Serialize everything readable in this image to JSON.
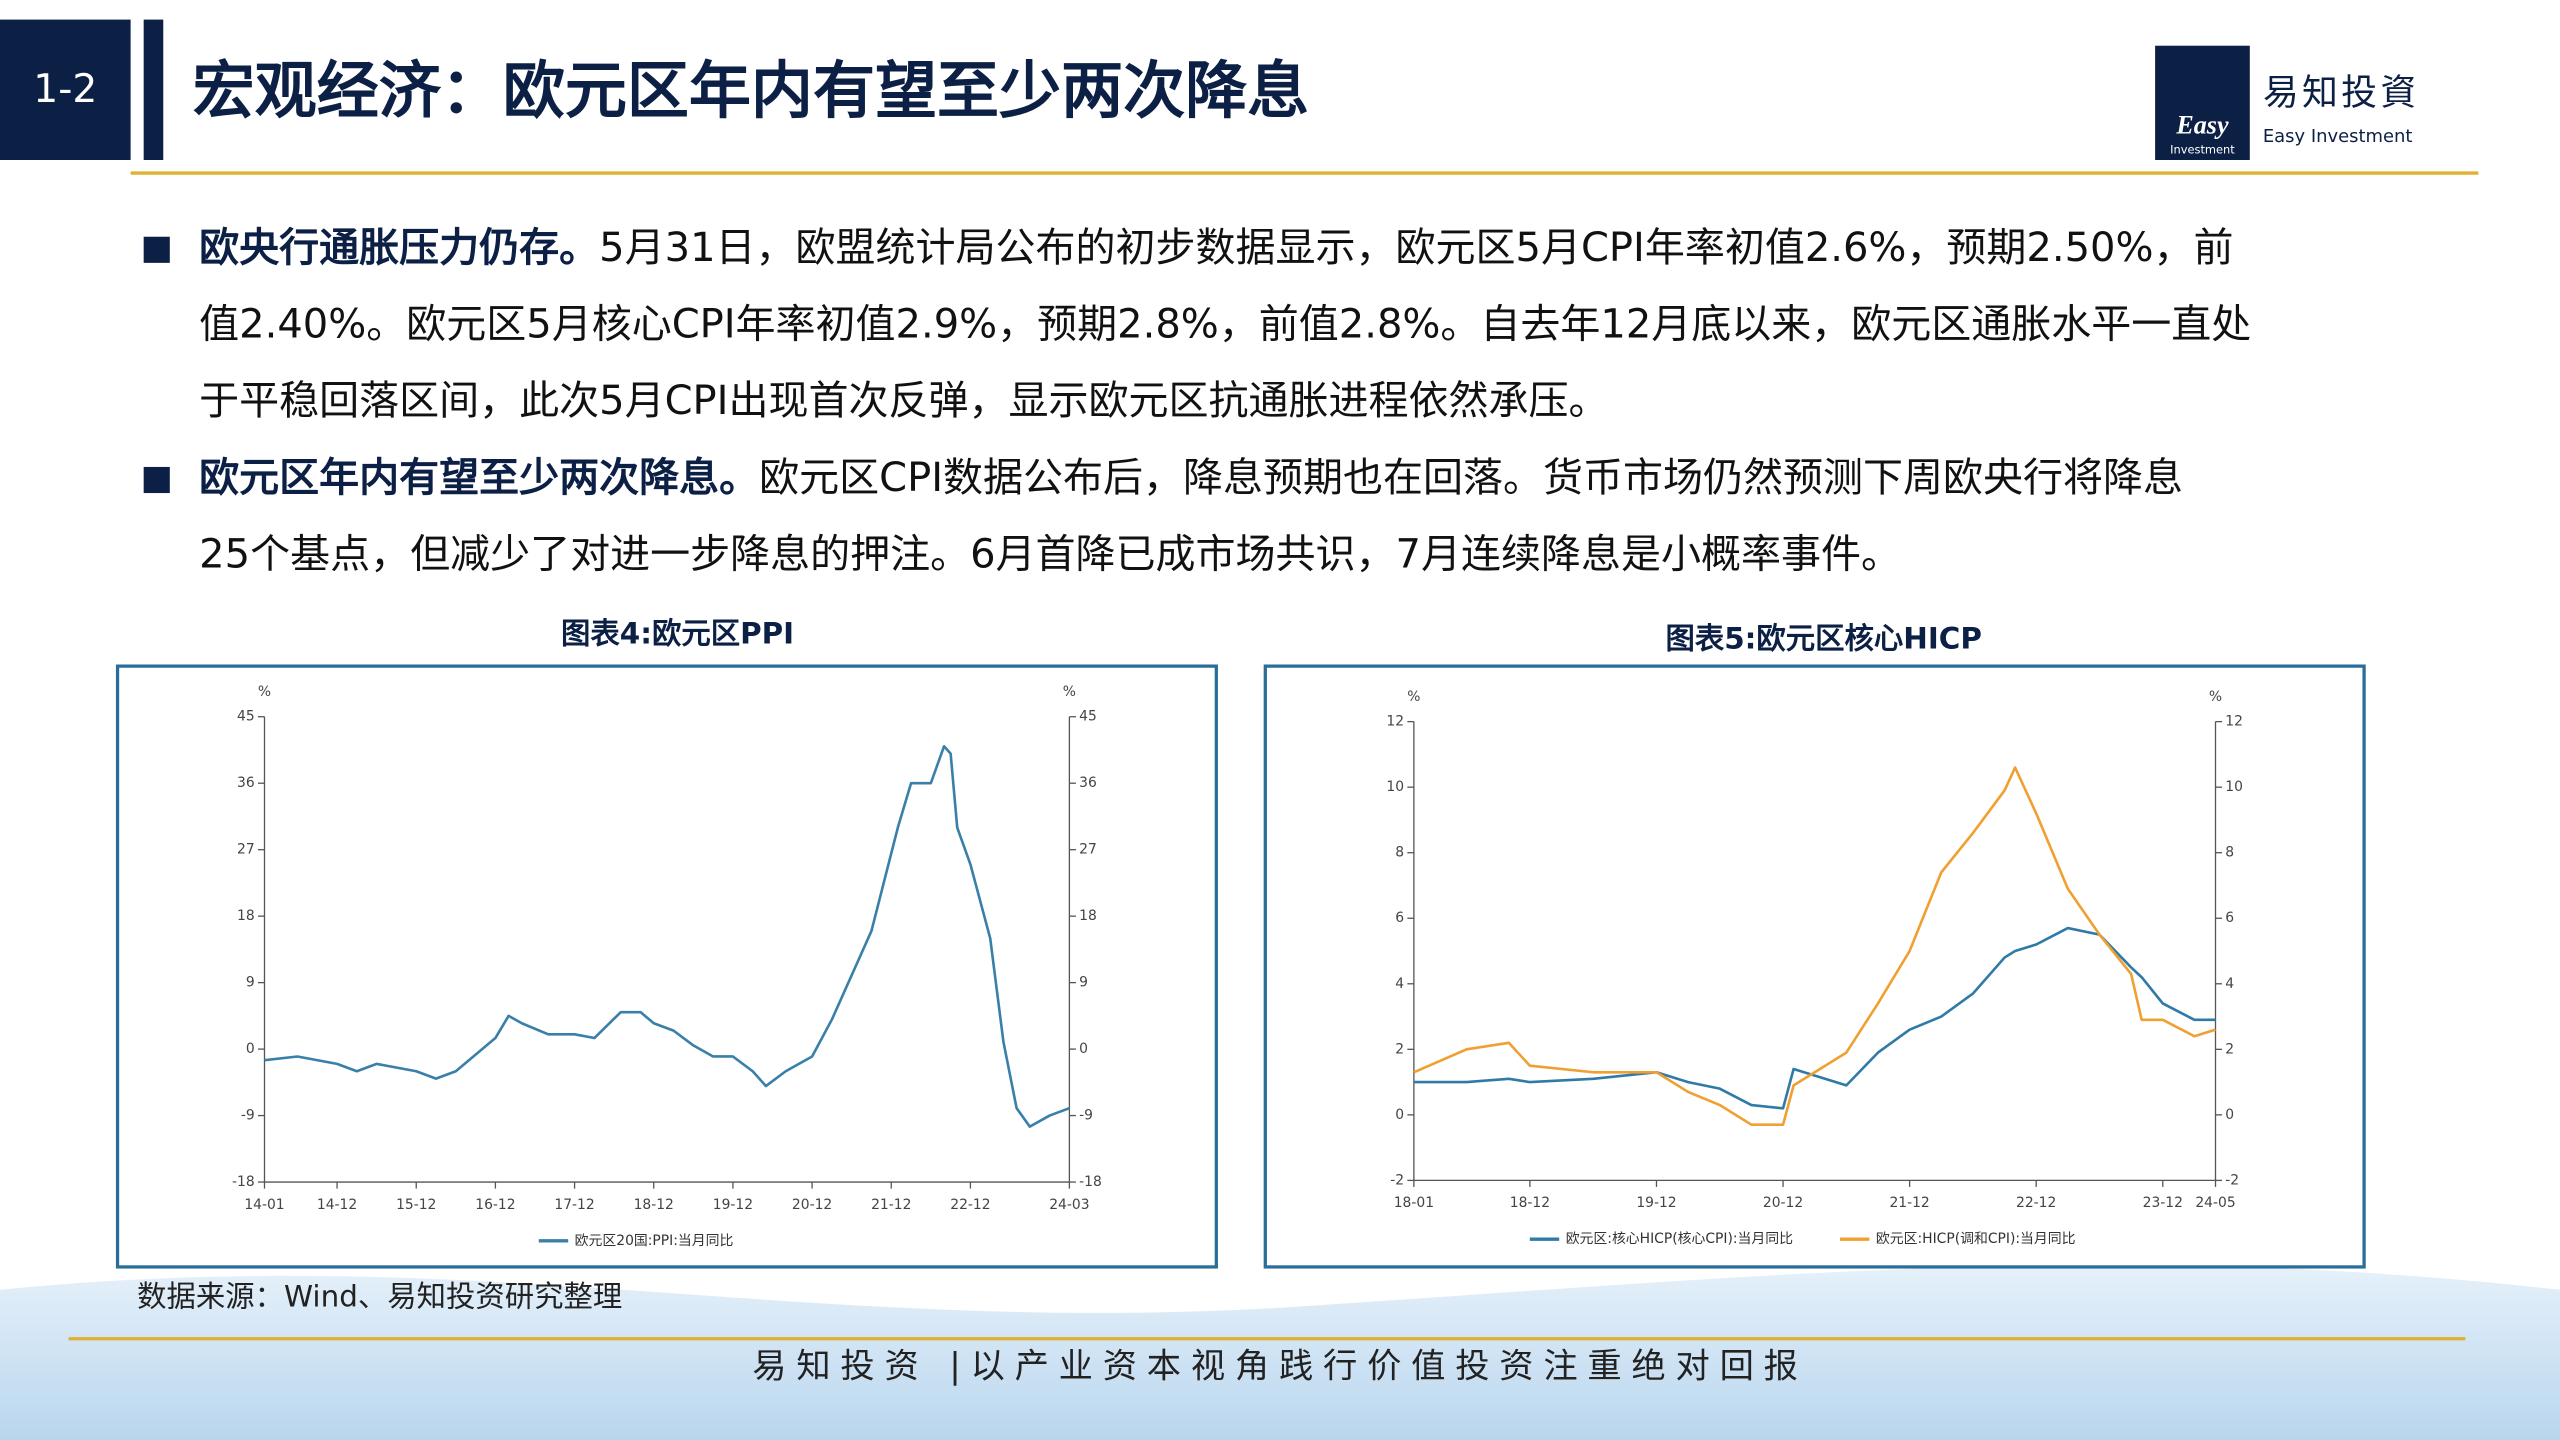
{
  "header": {
    "tag": "1-2",
    "title": "宏观经济：欧元区年内有望至少两次降息",
    "logo_mark": "Easy",
    "logo_mark_sub": "Investment",
    "logo_cn": "易知投資",
    "logo_en": "Easy Investment"
  },
  "bullets": [
    {
      "lead": "欧央行通胀压力仍存。",
      "lines": [
        "5月31日，欧盟统计局公布的初步数据显示，欧元区5月CPI年率初值2.6%，预期2.50%，前",
        "值2.40%。欧元区5月核心CPI年率初值2.9%，预期2.8%，前值2.8%。自去年12月底以来，欧元区通胀水平一直处",
        "于平稳回落区间，此次5月CPI出现首次反弹，显示欧元区抗通胀进程依然承压。"
      ]
    },
    {
      "lead": "欧元区年内有望至少两次降息。",
      "lines": [
        "欧元区CPI数据公布后，降息预期也在回落。货币市场仍然预测下周欧央行将降息",
        "25个基点，但减少了对进一步降息的押注。6月首降已成市场共识，7月连续降息是小概率事件。"
      ]
    }
  ],
  "source": "数据来源：Wind、易知投资研究整理",
  "footer": "易知投资 |以产业资本视角践行价值投资注重绝对回报",
  "chart_data": [
    {
      "type": "line",
      "title": "图表4:欧元区PPI",
      "ylabel": "%",
      "y2label": "%",
      "x": [
        "14-01",
        "14-06",
        "14-12",
        "15-03",
        "15-06",
        "15-12",
        "16-03",
        "16-06",
        "16-12",
        "17-02",
        "17-04",
        "17-08",
        "17-12",
        "18-03",
        "18-07",
        "18-10",
        "18-12",
        "19-03",
        "19-06",
        "19-09",
        "19-12",
        "20-03",
        "20-05",
        "20-08",
        "20-12",
        "21-03",
        "21-06",
        "21-09",
        "21-11",
        "22-01",
        "22-03",
        "22-06",
        "22-08",
        "22-09",
        "22-10",
        "22-12",
        "23-03",
        "23-05",
        "23-07",
        "23-09",
        "23-12",
        "24-03"
      ],
      "series": [
        {
          "name": "欧元区20国:PPI:当月同比",
          "color": "#3a7fa8",
          "values": [
            -1.5,
            -1,
            -2,
            -3,
            -2,
            -3,
            -4,
            -3,
            1.5,
            4.5,
            3.5,
            2,
            2,
            1.5,
            5,
            5,
            3.5,
            2.5,
            0.5,
            -1,
            -1,
            -3,
            -5,
            -3,
            -1,
            4,
            10,
            16,
            23,
            30,
            36,
            36,
            41,
            40,
            30,
            25,
            15,
            1,
            -8,
            -10.5,
            -9,
            -8
          ]
        }
      ],
      "xticks": [
        "14-01",
        "14-12",
        "15-12",
        "16-12",
        "17-12",
        "18-12",
        "19-12",
        "20-12",
        "21-12",
        "22-12",
        "24-03"
      ],
      "ylim": [
        -18,
        45
      ],
      "yticks": [
        -18,
        -9,
        0,
        9,
        18,
        27,
        36,
        45
      ],
      "y2lim": [
        -18,
        45
      ],
      "y2ticks": [
        -18,
        -9,
        0,
        9,
        18,
        27,
        36,
        45
      ],
      "grid": false
    },
    {
      "type": "line",
      "title": "图表5:欧元区核心HICP",
      "ylabel": "%",
      "y2label": "%",
      "x": [
        "18-01",
        "18-06",
        "18-10",
        "18-12",
        "19-06",
        "19-12",
        "20-03",
        "20-06",
        "20-09",
        "20-12",
        "21-01",
        "21-06",
        "21-09",
        "21-12",
        "22-03",
        "22-06",
        "22-09",
        "22-10",
        "22-12",
        "23-03",
        "23-06",
        "23-09",
        "23-10",
        "23-12",
        "24-03",
        "24-05"
      ],
      "series": [
        {
          "name": "欧元区:核心HICP(核心CPI):当月同比",
          "color": "#2f7aa6",
          "values": [
            1.0,
            1.0,
            1.1,
            1.0,
            1.1,
            1.3,
            1.0,
            0.8,
            0.3,
            0.2,
            1.4,
            0.9,
            1.9,
            2.6,
            3.0,
            3.7,
            4.8,
            5.0,
            5.2,
            5.7,
            5.5,
            4.5,
            4.2,
            3.4,
            2.9,
            2.9
          ]
        },
        {
          "name": "欧元区:HICP(调和CPI):当月同比",
          "color": "#f0a030",
          "values": [
            1.3,
            2.0,
            2.2,
            1.5,
            1.3,
            1.3,
            0.7,
            0.3,
            -0.3,
            -0.3,
            0.9,
            1.9,
            3.4,
            5.0,
            7.4,
            8.6,
            9.9,
            10.6,
            9.2,
            6.9,
            5.5,
            4.3,
            2.9,
            2.9,
            2.4,
            2.6
          ]
        }
      ],
      "xticks": [
        "18-01",
        "18-12",
        "19-12",
        "20-12",
        "21-12",
        "22-12",
        "23-12",
        "24-05"
      ],
      "ylim": [
        -2,
        12
      ],
      "yticks": [
        -2,
        0,
        2,
        4,
        6,
        8,
        10,
        12
      ],
      "y2lim": [
        -2,
        12
      ],
      "y2ticks": [
        -2,
        0,
        2,
        4,
        6,
        8,
        10,
        12
      ],
      "grid": false
    }
  ]
}
